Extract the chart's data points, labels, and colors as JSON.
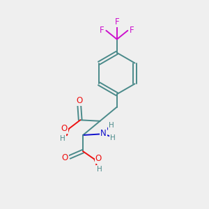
{
  "bg_color": "#efefef",
  "bond_color": "#4a8a8a",
  "bond_width": 1.4,
  "atom_colors": {
    "O": "#ee1111",
    "N": "#1111cc",
    "F": "#cc11cc",
    "H": "#4a8a8a",
    "C": "#4a8a8a"
  },
  "fs": 8.5
}
